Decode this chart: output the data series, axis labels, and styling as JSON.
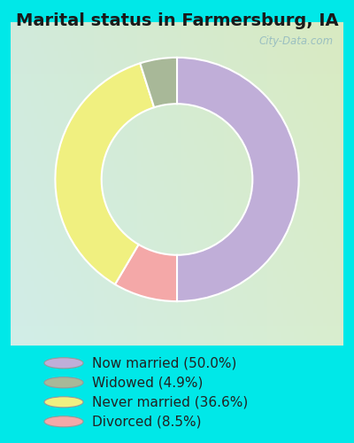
{
  "title": "Marital status in Farmersburg, IA",
  "plot_sizes": [
    50.0,
    8.5,
    36.6,
    4.9
  ],
  "plot_colors": [
    "#c0aed8",
    "#f4a8a8",
    "#f0f080",
    "#a8b898"
  ],
  "legend_colors": [
    "#c0aed8",
    "#a8b898",
    "#f0f080",
    "#f4a8a8"
  ],
  "labels": [
    "Now married (50.0%)",
    "Widowed (4.9%)",
    "Never married (36.6%)",
    "Divorced (8.5%)"
  ],
  "outer_bg": "#00e8e8",
  "chart_bg_tl": "#d0ede8",
  "chart_bg_br": "#d8eddc",
  "title_fontsize": 14,
  "legend_fontsize": 11,
  "watermark": "City-Data.com"
}
